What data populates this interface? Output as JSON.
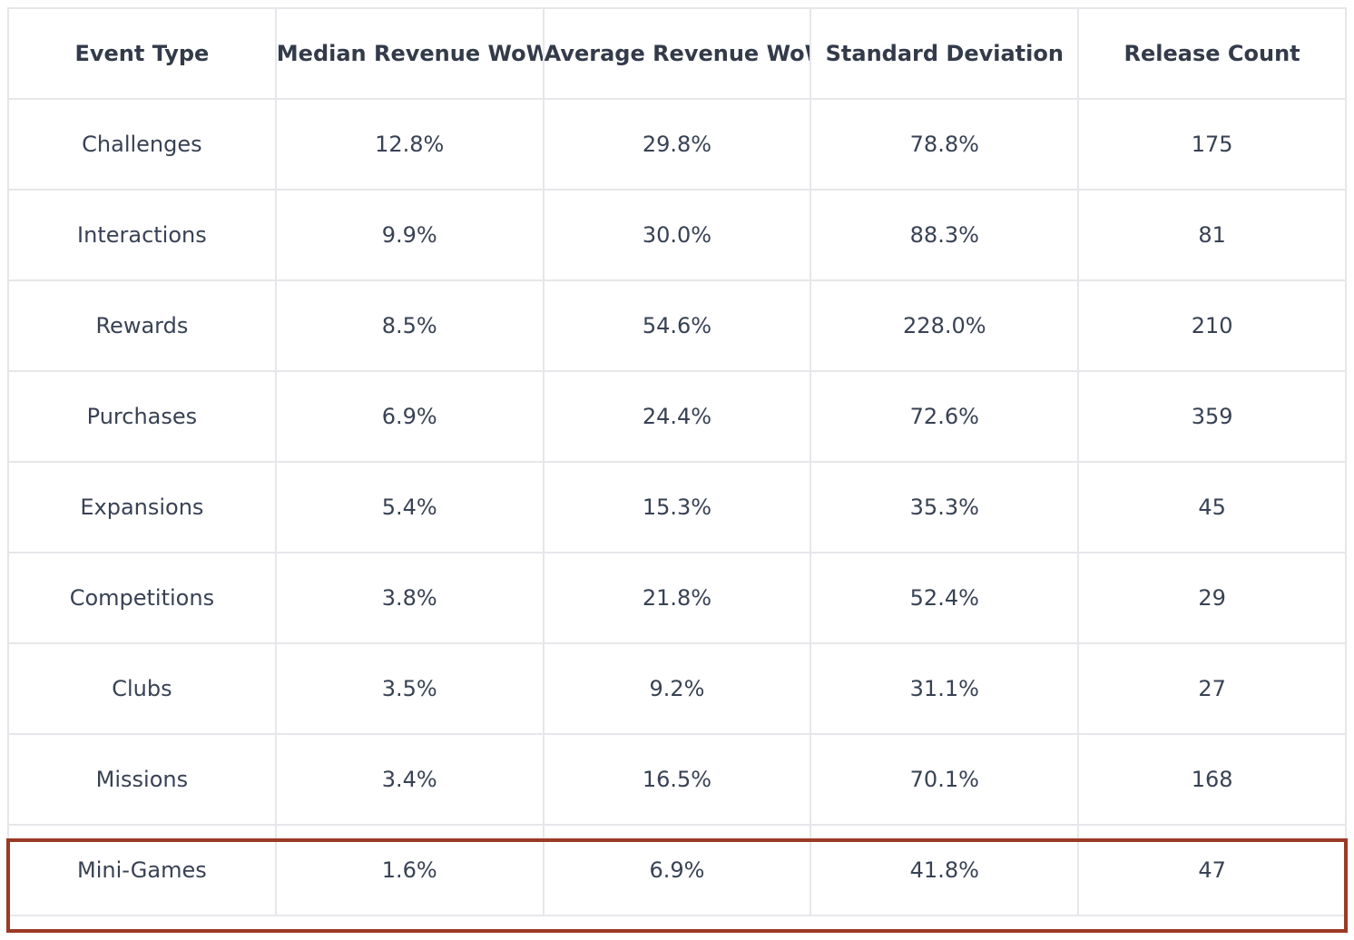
{
  "table": {
    "headers": [
      "Event Type",
      "Median Revenue WoW",
      "Average Revenue WoW",
      "Standard Deviation",
      "Release Count"
    ],
    "rows": [
      [
        "Challenges",
        "12.8%",
        "29.8%",
        "78.8%",
        "175"
      ],
      [
        "Interactions",
        "9.9%",
        "30.0%",
        "88.3%",
        "81"
      ],
      [
        "Rewards",
        "8.5%",
        "54.6%",
        "228.0%",
        "210"
      ],
      [
        "Purchases",
        "6.9%",
        "24.4%",
        "72.6%",
        "359"
      ],
      [
        "Expansions",
        "5.4%",
        "15.3%",
        "35.3%",
        "45"
      ],
      [
        "Competitions",
        "3.8%",
        "21.8%",
        "52.4%",
        "29"
      ],
      [
        "Clubs",
        "3.5%",
        "9.2%",
        "31.1%",
        "27"
      ],
      [
        "Missions",
        "3.4%",
        "16.5%",
        "70.1%",
        "168"
      ],
      [
        "Mini-Games",
        "1.6%",
        "6.9%",
        "41.8%",
        "47"
      ]
    ],
    "highlighted_row": "Mini-Games"
  },
  "colors": {
    "highlight_border": "#9b3a25",
    "grid": "#e6e7ea",
    "text": "#384254"
  }
}
